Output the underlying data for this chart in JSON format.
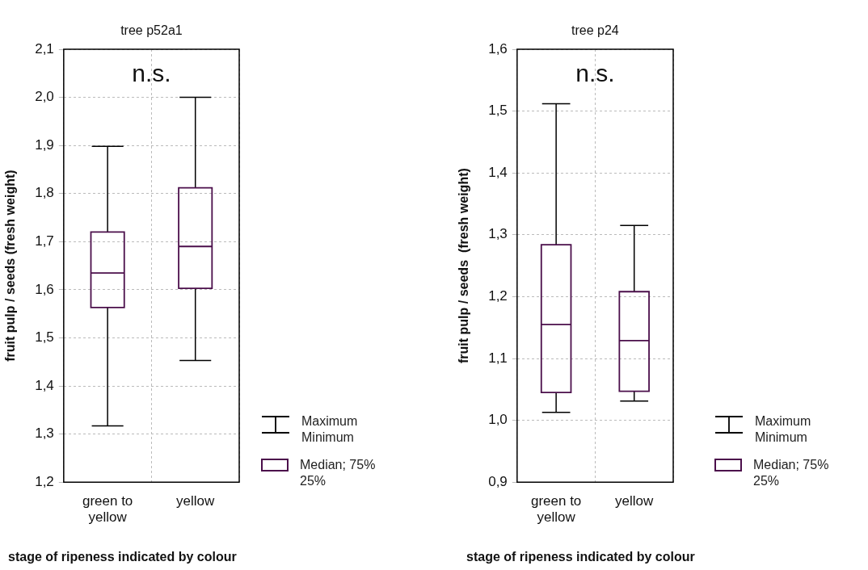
{
  "chart_data": [
    {
      "type": "box",
      "title": "tree p52a1",
      "xlabel": "stage of ripeness indicated by colour",
      "ylabel": "fruit pulp / seeds (fresh weight)",
      "categories": [
        "green to\nyellow",
        "yellow"
      ],
      "series": [
        {
          "name": "Median; 75%\n25%",
          "color": "#4b0f4b",
          "boxes": [
            {
              "low": 1.317,
              "q1": 1.563,
              "median": 1.635,
              "q3": 1.72,
              "high": 1.898
            },
            {
              "low": 1.453,
              "q1": 1.603,
              "median": 1.69,
              "q3": 1.812,
              "high": 2.0
            }
          ]
        }
      ],
      "ylim": [
        1.2,
        2.1
      ],
      "yticks": [
        {
          "value": 1.2,
          "label": "1,2"
        },
        {
          "value": 1.3,
          "label": "1,3"
        },
        {
          "value": 1.4,
          "label": "1,4"
        },
        {
          "value": 1.5,
          "label": "1,5"
        },
        {
          "value": 1.6,
          "label": "1,6"
        },
        {
          "value": 1.7,
          "label": "1,7"
        },
        {
          "value": 1.8,
          "label": "1,8"
        },
        {
          "value": 1.9,
          "label": "1,9"
        },
        {
          "value": 2.0,
          "label": "2,0"
        },
        {
          "value": 2.1,
          "label": "2,1"
        }
      ],
      "grid": true,
      "legend": "right",
      "annotations": [
        "n.s.",
        "Maximum\nMinimum"
      ]
    },
    {
      "type": "box",
      "title": "tree p24",
      "xlabel": "stage of ripeness indicated by colour",
      "ylabel": "fruit pulp / seeds  (fresh weight)",
      "categories": [
        "green to\nyellow",
        "yellow"
      ],
      "series": [
        {
          "name": "Median; 75%\n25%",
          "color": "#4b0f4b",
          "boxes": [
            {
              "low": 1.013,
              "q1": 1.045,
              "median": 1.155,
              "q3": 1.284,
              "high": 1.512
            },
            {
              "low": 1.031,
              "q1": 1.047,
              "median": 1.129,
              "q3": 1.208,
              "high": 1.315
            }
          ]
        }
      ],
      "ylim": [
        0.9,
        1.6
      ],
      "yticks": [
        {
          "value": 0.9,
          "label": "0,9"
        },
        {
          "value": 1.0,
          "label": "1,0"
        },
        {
          "value": 1.1,
          "label": "1,1"
        },
        {
          "value": 1.2,
          "label": "1,2"
        },
        {
          "value": 1.3,
          "label": "1,3"
        },
        {
          "value": 1.4,
          "label": "1,4"
        },
        {
          "value": 1.5,
          "label": "1,5"
        },
        {
          "value": 1.6,
          "label": "1,6"
        }
      ],
      "grid": true,
      "legend": "right",
      "annotations": [
        "n.s.",
        "Maximum\nMinimum"
      ]
    }
  ]
}
